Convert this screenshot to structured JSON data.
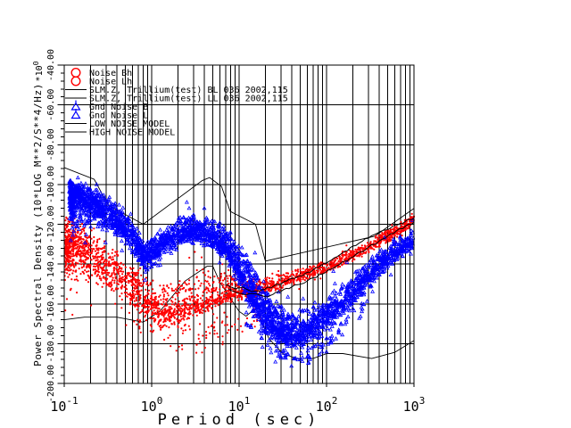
{
  "plot": {
    "background": "#ffffff",
    "frame_color": "#000000",
    "accent_red": "#ff0000",
    "accent_blue": "#0000ff"
  },
  "axes": {
    "x": {
      "label": "Period (sec)",
      "scale": "log",
      "ticks": [
        {
          "base": "10",
          "exp": "-1",
          "value": 0.1
        },
        {
          "base": "10",
          "exp": "0",
          "value": 1
        },
        {
          "base": "10",
          "exp": "1",
          "value": 10
        },
        {
          "base": "10",
          "exp": "2",
          "value": 100
        },
        {
          "base": "10",
          "exp": "3",
          "value": 1000
        }
      ]
    },
    "y": {
      "label": "Power Spectral Density (10*LOG M**2/S**4/Hz)",
      "scale_factor": {
        "text": "*10",
        "exp": "0"
      },
      "max": -40,
      "min": -200,
      "major_step": 20,
      "minor_step": 4,
      "ticks": [
        {
          "label": "-40.00",
          "value": -40
        },
        {
          "label": "-60.00",
          "value": -60
        },
        {
          "label": "-80.00",
          "value": -80
        },
        {
          "label": "-100.00",
          "value": -100
        },
        {
          "label": "-120.00",
          "value": -120
        },
        {
          "label": "-140.00",
          "value": -140
        },
        {
          "label": "-160.00",
          "value": -160
        },
        {
          "label": "-180.00",
          "value": -180
        },
        {
          "label": "-200.00",
          "value": -200
        }
      ]
    }
  },
  "legend": {
    "items": [
      {
        "label": "Noise Bh",
        "marker": "circle",
        "color": "#ff0000"
      },
      {
        "label": "Noise Lh",
        "marker": "circle",
        "color": "#ff0000"
      },
      {
        "label": "SLM.Z, Trillium(test) BL 036 2002,115",
        "marker": "line",
        "color": "#000000"
      },
      {
        "label": "SLM.Z, Trillium(test) LL 036 2002,115",
        "marker": "line",
        "color": "#000000"
      },
      {
        "label": "Gnd Noise B",
        "marker": "triangle",
        "color": "#0000ff"
      },
      {
        "label": "Gnd Noise L",
        "marker": "triangle",
        "color": "#0000ff"
      },
      {
        "label": "LOW NOISE MODEL",
        "marker": "line",
        "color": "#000000"
      },
      {
        "label": "HIGH NOISE MODEL",
        "marker": "line",
        "color": "#000000"
      }
    ]
  },
  "chart_data": {
    "type": "scatter",
    "title": "",
    "xlabel": "Period (sec)",
    "ylabel": "Power Spectral Density (10*LOG M**2/S**4/Hz)",
    "xscale": "log",
    "xlim": [
      0.1,
      1000
    ],
    "ylim": [
      -200,
      -40
    ],
    "grid": true,
    "legend_position": "top-left",
    "series": [
      {
        "name": "LOW NOISE MODEL",
        "type": "line",
        "color": "#000000",
        "points": [
          [
            0.1,
            -168.0
          ],
          [
            0.17,
            -166.7
          ],
          [
            0.4,
            -166.7
          ],
          [
            0.8,
            -169.2
          ],
          [
            1.24,
            -163.7
          ],
          [
            2.4,
            -148.6
          ],
          [
            4.3,
            -141.1
          ],
          [
            5.0,
            -141.1
          ],
          [
            6.0,
            -149.0
          ],
          [
            10.0,
            -163.8
          ],
          [
            12.0,
            -166.2
          ],
          [
            15.6,
            -162.1
          ],
          [
            21.9,
            -177.5
          ],
          [
            31.6,
            -185.0
          ],
          [
            45.0,
            -187.5
          ],
          [
            70.0,
            -187.5
          ],
          [
            101.0,
            -185.0
          ],
          [
            154.0,
            -185.0
          ],
          [
            328.0,
            -187.5
          ],
          [
            600.0,
            -184.4
          ],
          [
            1000,
            -178.5
          ]
        ]
      },
      {
        "name": "HIGH NOISE MODEL",
        "type": "line",
        "color": "#000000",
        "points": [
          [
            0.1,
            -91.5
          ],
          [
            0.22,
            -97.4
          ],
          [
            0.32,
            -110.5
          ],
          [
            0.8,
            -120.0
          ],
          [
            3.8,
            -98.0
          ],
          [
            4.6,
            -96.5
          ],
          [
            6.3,
            -101.0
          ],
          [
            7.9,
            -113.5
          ],
          [
            15.4,
            -120.0
          ],
          [
            20.0,
            -138.5
          ],
          [
            354.8,
            -126.0
          ],
          [
            1000,
            -112.0
          ]
        ]
      },
      {
        "name": "SLM.Z, Trillium(test) BL 036 2002,115",
        "type": "jagged-line",
        "color": "#000000",
        "points": [
          [
            7,
            -150.5
          ],
          [
            9,
            -152.5
          ],
          [
            11,
            -151.5
          ],
          [
            14,
            -153.8
          ],
          [
            18,
            -153.0
          ],
          [
            25,
            -151.0
          ],
          [
            35,
            -148.5
          ],
          [
            50,
            -146.0
          ],
          [
            70,
            -143.0
          ],
          [
            100,
            -139.5
          ],
          [
            140,
            -135.5
          ],
          [
            200,
            -131.0
          ],
          [
            300,
            -127.0
          ],
          [
            450,
            -123.0
          ],
          [
            700,
            -119.5
          ],
          [
            1000,
            -117.0
          ]
        ]
      },
      {
        "name": "SLM.Z, Trillium(test) LL 036 2002,115",
        "type": "jagged-line",
        "color": "#000000",
        "points": [
          [
            7.5,
            -152.5
          ],
          [
            9,
            -154.0
          ],
          [
            12,
            -155.5
          ],
          [
            16,
            -155.0
          ],
          [
            20,
            -156.5
          ],
          [
            28,
            -154.0
          ],
          [
            40,
            -151.5
          ],
          [
            60,
            -148.5
          ],
          [
            90,
            -145.0
          ],
          [
            130,
            -141.0
          ],
          [
            200,
            -136.5
          ],
          [
            300,
            -131.5
          ],
          [
            500,
            -126.0
          ],
          [
            800,
            -121.0
          ],
          [
            1000,
            -119.0
          ]
        ]
      },
      {
        "name": "Noise Bh / Noise Lh",
        "type": "scatter-band",
        "marker": "circle",
        "color": "#ff0000",
        "band": [
          {
            "p": 0.1,
            "db": -132.0,
            "up": 13,
            "dn": 13,
            "n": 260
          },
          {
            "p": 0.13,
            "db": -130.0,
            "up": 15,
            "dn": 10,
            "n": 240
          },
          {
            "p": 0.2,
            "db": -136.0,
            "up": 11,
            "dn": 10,
            "n": 220
          },
          {
            "p": 0.4,
            "db": -145.0,
            "up": 9,
            "dn": 9,
            "n": 200
          },
          {
            "p": 0.79,
            "db": -157.0,
            "up": 7,
            "dn": 9,
            "n": 190
          },
          {
            "p": 1.41,
            "db": -164.5,
            "up": 6,
            "dn": 11,
            "n": 170
          },
          {
            "p": 2.51,
            "db": -162.0,
            "up": 5,
            "dn": 13,
            "n": 160
          },
          {
            "p": 4.47,
            "db": -158.5,
            "up": 4,
            "dn": 14,
            "n": 150
          },
          {
            "p": 7.94,
            "db": -155.0,
            "up": 3.5,
            "dn": 10,
            "n": 140
          },
          {
            "p": 14.1,
            "db": -153.0,
            "up": 3,
            "dn": 5,
            "n": 130
          },
          {
            "p": 25.1,
            "db": -150.0,
            "up": 2.8,
            "dn": 4,
            "n": 130
          },
          {
            "p": 50.1,
            "db": -146.0,
            "up": 2.6,
            "dn": 3.2,
            "n": 130
          },
          {
            "p": 100,
            "db": -141.5,
            "up": 2.5,
            "dn": 3,
            "n": 130
          },
          {
            "p": 200,
            "db": -135.5,
            "up": 2.5,
            "dn": 2.8,
            "n": 120
          },
          {
            "p": 398,
            "db": -128.5,
            "up": 2.4,
            "dn": 2.6,
            "n": 110
          },
          {
            "p": 631,
            "db": -123.5,
            "up": 2.4,
            "dn": 2.6,
            "n": 100
          },
          {
            "p": 1000,
            "db": -117.5,
            "up": 2.6,
            "dn": 2.6,
            "n": 0
          }
        ]
      },
      {
        "name": "Noise Bh/Lh outliers",
        "type": "scatter-band",
        "marker": "circle",
        "color": "#ff0000",
        "band": [
          {
            "p": 0.5,
            "db": -168,
            "up": 4,
            "dn": 12,
            "n": 25
          },
          {
            "p": 1.5,
            "db": -175,
            "up": 6,
            "dn": 9,
            "n": 30
          },
          {
            "p": 4.0,
            "db": -176,
            "up": 8,
            "dn": 8,
            "n": 30
          },
          {
            "p": 10,
            "db": -170,
            "up": 6,
            "dn": 6,
            "n": 20
          },
          {
            "p": 18,
            "db": -165,
            "up": 4,
            "dn": 4,
            "n": 0
          }
        ]
      },
      {
        "name": "Gnd Noise B / Gnd Noise L",
        "type": "scatter-band",
        "marker": "triangle",
        "color": "#0000ff",
        "band": [
          {
            "p": 0.115,
            "db": -104.0,
            "up": 12,
            "dn": 6,
            "n": 200
          },
          {
            "p": 0.13,
            "db": -106.0,
            "up": 14,
            "dn": 6,
            "n": 220
          },
          {
            "p": 0.2,
            "db": -109.0,
            "up": 8,
            "dn": 7,
            "n": 200
          },
          {
            "p": 0.3,
            "db": -114.0,
            "up": 7,
            "dn": 7,
            "n": 190
          },
          {
            "p": 0.5,
            "db": -122.0,
            "up": 6,
            "dn": 7,
            "n": 180
          },
          {
            "p": 0.85,
            "db": -136.5,
            "up": 6,
            "dn": 6,
            "n": 170
          },
          {
            "p": 1.3,
            "db": -130.0,
            "up": 6,
            "dn": 6,
            "n": 150
          },
          {
            "p": 2.2,
            "db": -123.5,
            "up": 5,
            "dn": 6,
            "n": 150
          },
          {
            "p": 3.2,
            "db": -122.5,
            "up": 5,
            "dn": 6,
            "n": 140
          },
          {
            "p": 5.0,
            "db": -126.0,
            "up": 5,
            "dn": 7,
            "n": 140
          },
          {
            "p": 7.1,
            "db": -131.0,
            "up": 5,
            "dn": 8,
            "n": 140
          },
          {
            "p": 10,
            "db": -143.0,
            "up": 6,
            "dn": 10,
            "n": 150
          },
          {
            "p": 14.1,
            "db": -155.0,
            "up": 7,
            "dn": 12,
            "n": 160
          },
          {
            "p": 20,
            "db": -166.0,
            "up": 7,
            "dn": 12,
            "n": 160
          },
          {
            "p": 28,
            "db": -172.5,
            "up": 6,
            "dn": 10,
            "n": 150
          },
          {
            "p": 40,
            "db": -175.5,
            "up": 6,
            "dn": 9,
            "n": 140
          },
          {
            "p": 63,
            "db": -173.0,
            "up": 6,
            "dn": 9,
            "n": 140
          },
          {
            "p": 100,
            "db": -166.5,
            "up": 6,
            "dn": 8,
            "n": 140
          },
          {
            "p": 158,
            "db": -159.0,
            "up": 5,
            "dn": 8,
            "n": 130
          },
          {
            "p": 251,
            "db": -150.0,
            "up": 5,
            "dn": 7,
            "n": 130
          },
          {
            "p": 398,
            "db": -140.5,
            "up": 5,
            "dn": 6,
            "n": 120
          },
          {
            "p": 631,
            "db": -133.5,
            "up": 4.5,
            "dn": 5,
            "n": 110
          },
          {
            "p": 1000,
            "db": -128.0,
            "up": 4.5,
            "dn": 4.5,
            "n": 0
          }
        ]
      },
      {
        "name": "Gnd Noise tail",
        "type": "scatter-band",
        "marker": "triangle",
        "color": "#0000ff",
        "band": [
          {
            "p": 12,
            "db": -168,
            "up": 3,
            "dn": 8,
            "n": 20
          },
          {
            "p": 25,
            "db": -184,
            "up": 5,
            "dn": 5,
            "n": 25
          },
          {
            "p": 50,
            "db": -187,
            "up": 5,
            "dn": 4,
            "n": 25
          },
          {
            "p": 90,
            "db": -180,
            "up": 5,
            "dn": 5,
            "n": 20
          },
          {
            "p": 160,
            "db": -170,
            "up": 4,
            "dn": 4,
            "n": 15
          },
          {
            "p": 300,
            "db": -158,
            "up": 4,
            "dn": 4,
            "n": 0
          }
        ]
      }
    ]
  }
}
